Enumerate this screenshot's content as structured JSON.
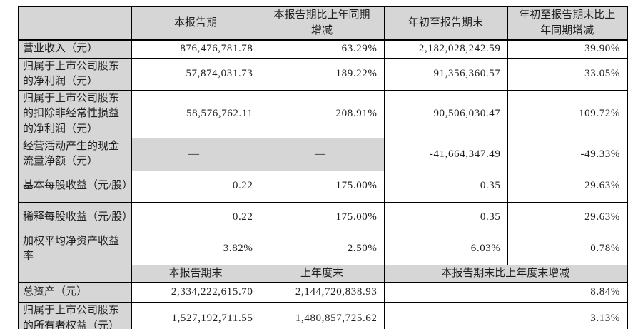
{
  "colors": {
    "header_bg": "#d6d6d6",
    "grid_border": "#000000",
    "text": "#1f1f1f"
  },
  "indicator_table": {
    "corner": "",
    "col_headers": {
      "current": "本报告期",
      "current_yoy": "本报告期比上年同期增减",
      "ytd": "年初至报告期末",
      "ytd_yoy": "年初至报告期末比上年同期增减"
    },
    "rows": [
      {
        "label": "营业收入（元）",
        "current": "876,476,781.78",
        "current_yoy": "63.29%",
        "ytd": "2,182,028,242.59",
        "ytd_yoy": "39.90%"
      },
      {
        "label": "归属于上市公司股东的净利润（元）",
        "current": "57,874,031.73",
        "current_yoy": "189.22%",
        "ytd": "91,356,360.57",
        "ytd_yoy": "33.05%"
      },
      {
        "label": "归属于上市公司股东的扣除非经常性损益的净利润（元）",
        "current": "58,576,762.11",
        "current_yoy": "208.91%",
        "ytd": "90,506,030.47",
        "ytd_yoy": "109.72%"
      },
      {
        "label": "经营活动产生的现金流量净额（元）",
        "current": "—",
        "current_yoy": "—",
        "ytd": "-41,664,347.49",
        "ytd_yoy": "-49.33%"
      },
      {
        "label": "基本每股收益（元/股）",
        "current": "0.22",
        "current_yoy": "175.00%",
        "ytd": "0.35",
        "ytd_yoy": "29.63%"
      },
      {
        "label": "稀释每股收益（元/股）",
        "current": "0.22",
        "current_yoy": "175.00%",
        "ytd": "0.35",
        "ytd_yoy": "29.63%"
      },
      {
        "label": "加权平均净资产收益率",
        "current": "3.82%",
        "current_yoy": "2.50%",
        "ytd": "6.03%",
        "ytd_yoy": "0.78%"
      }
    ]
  },
  "balance_table": {
    "corner": "",
    "col_headers": {
      "period_end": "本报告期末",
      "prior_year_end": "上年度末",
      "change": "本报告期末比上年度末增减"
    },
    "rows": [
      {
        "label": "总资产（元）",
        "period_end": "2,334,222,615.70",
        "prior_year_end": "2,144,720,838.93",
        "change": "8.84%"
      },
      {
        "label": "归属于上市公司股东的所有者权益（元）",
        "period_end": "1,527,192,711.55",
        "prior_year_end": "1,480,857,725.62",
        "change": "3.13%"
      }
    ]
  }
}
